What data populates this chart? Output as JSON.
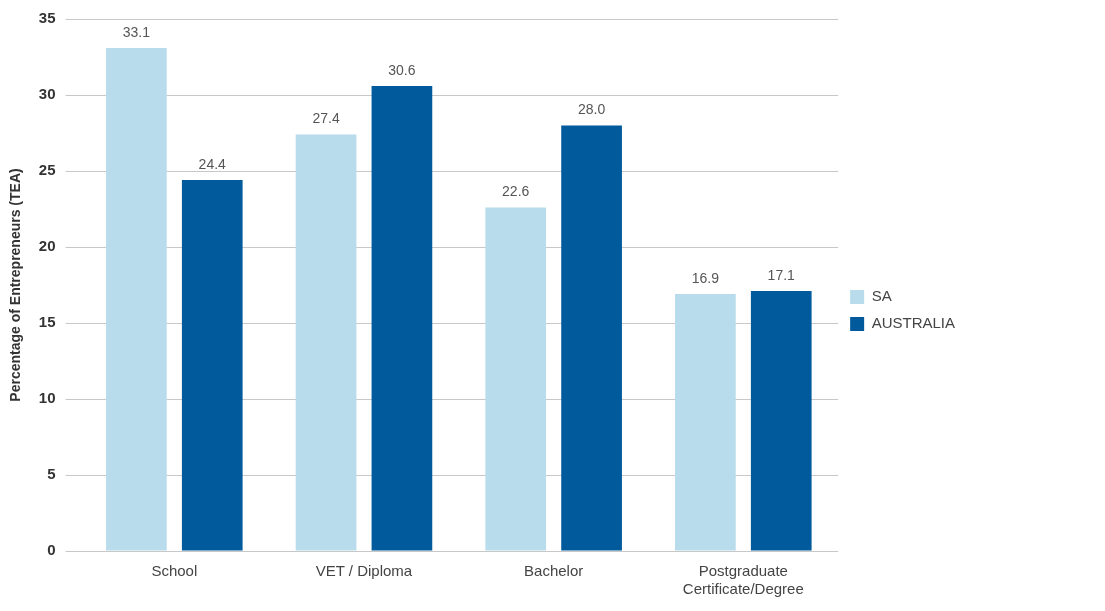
{
  "chart_data": {
    "type": "bar",
    "ylabel": "Percentage of Entrepreneurs (TEA)",
    "categories": [
      "School",
      "VET / Diploma",
      "Bachelor",
      "Postgraduate Certificate/Degree"
    ],
    "series": [
      {
        "name": "SA",
        "color": "#b8dcec",
        "values": [
          33.1,
          27.4,
          22.6,
          16.9
        ],
        "value_labels": [
          "33.1",
          "27.4",
          "22.6",
          "16.9"
        ]
      },
      {
        "name": "AUSTRALIA",
        "color": "#005a9c",
        "values": [
          24.4,
          30.6,
          28.0,
          17.1
        ],
        "value_labels": [
          "24.4",
          "30.6",
          "28.0",
          "17.1"
        ]
      }
    ],
    "ylim": [
      0,
      35
    ],
    "yticks": [
      0,
      5,
      10,
      15,
      20,
      25,
      30,
      35
    ],
    "grid": "y",
    "legend": "right"
  }
}
